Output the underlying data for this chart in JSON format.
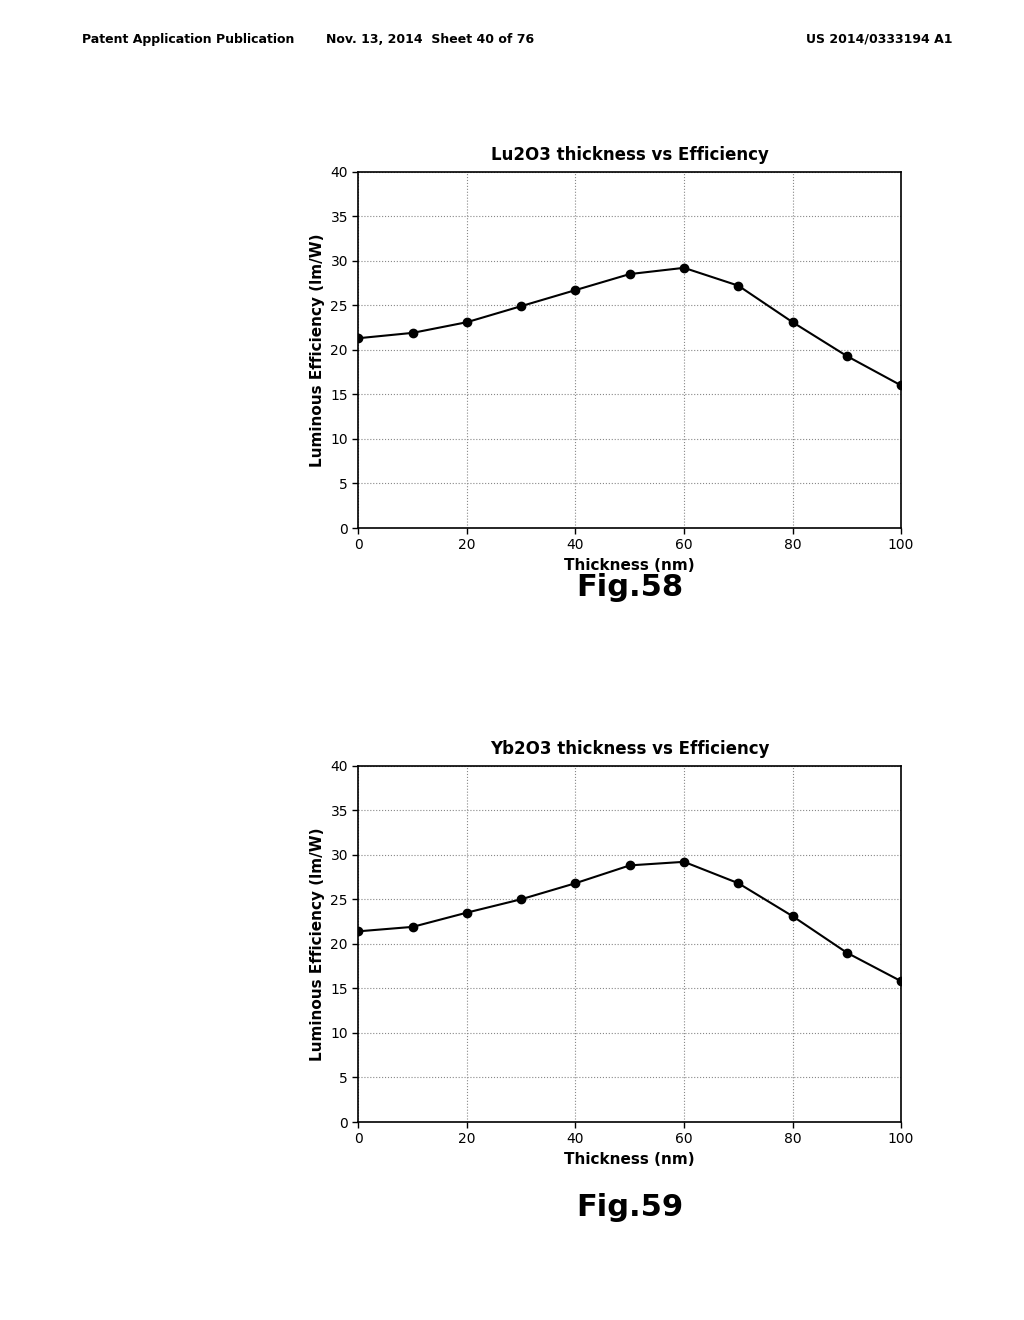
{
  "chart1": {
    "title": "Lu2O3 thickness vs Efficiency",
    "x": [
      0,
      10,
      20,
      30,
      40,
      50,
      60,
      70,
      80,
      90,
      100
    ],
    "y": [
      21.3,
      21.9,
      23.1,
      24.9,
      26.7,
      28.5,
      29.2,
      27.2,
      23.1,
      19.3,
      16.0
    ],
    "fig_label": "Fig.58"
  },
  "chart2": {
    "title": "Yb2O3 thickness vs Efficiency",
    "x": [
      0,
      10,
      20,
      30,
      40,
      50,
      60,
      70,
      80,
      90,
      100
    ],
    "y": [
      21.4,
      21.9,
      23.5,
      25.0,
      26.8,
      28.8,
      29.2,
      26.8,
      23.1,
      19.0,
      15.8
    ],
    "fig_label": "Fig.59"
  },
  "xlabel": "Thickness (nm)",
  "ylabel": "Luminous Efficiency (lm/W)",
  "xlim": [
    0,
    100
  ],
  "ylim": [
    0,
    40
  ],
  "yticks": [
    0,
    5,
    10,
    15,
    20,
    25,
    30,
    35,
    40
  ],
  "xticks": [
    0,
    20,
    40,
    60,
    80,
    100
  ],
  "header_left": "Patent Application Publication",
  "header_mid": "Nov. 13, 2014  Sheet 40 of 76",
  "header_right": "US 2014/0333194 A1",
  "bg_color": "#ffffff",
  "line_color": "#000000",
  "marker": "o",
  "markersize": 6,
  "linewidth": 1.5,
  "title_fontsize": 12,
  "label_fontsize": 11,
  "tick_fontsize": 10,
  "fig_label_fontsize": 22,
  "header_fontsize": 9
}
